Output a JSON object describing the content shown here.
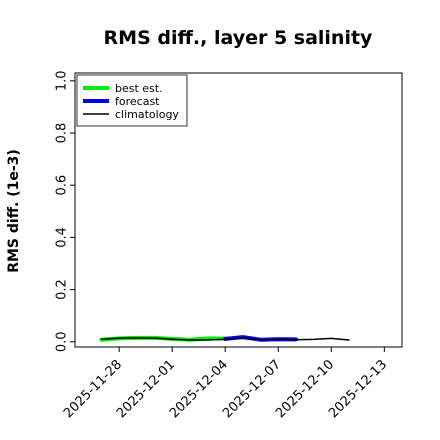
{
  "chart_data": {
    "type": "line",
    "title": "RMS diff., layer 5 salinity",
    "xlabel": "",
    "ylabel": "RMS diff. (1e-3)",
    "ylim": [
      -0.02,
      1.03
    ],
    "yticks": [
      0.0,
      0.2,
      0.4,
      0.6,
      0.8,
      1.0
    ],
    "ytick_labels": [
      "0.0",
      "0.2",
      "0.4",
      "0.6",
      "0.8",
      "1.0"
    ],
    "xlim": [
      "2025-11-25T12:00",
      "2025-12-14"
    ],
    "xticks": [
      "2025-11-28",
      "2025-12-01",
      "2025-12-04",
      "2025-12-07",
      "2025-12-10",
      "2025-12-13"
    ],
    "xtick_labels": [
      "2025-11-28",
      "2025-12-01",
      "2025-12-04",
      "2025-12-07",
      "2025-12-10",
      "2025-12-13"
    ],
    "xtick_colors": [
      "#000000",
      "#000000",
      "#228b22",
      "#000000",
      "#000000",
      "#000000"
    ],
    "grid": false,
    "legend_position": "upper-left",
    "series": [
      {
        "name": "best est.",
        "color": "#00ee00",
        "line_width": 4,
        "x": [
          "2025-11-27",
          "2025-11-28",
          "2025-11-29",
          "2025-11-30",
          "2025-12-01",
          "2025-12-02",
          "2025-12-03",
          "2025-12-04"
        ],
        "y": [
          0.008,
          0.013,
          0.015,
          0.015,
          0.011,
          0.008,
          0.013,
          0.012
        ]
      },
      {
        "name": "forecast",
        "color": "#0000ee",
        "line_width": 4,
        "x": [
          "2025-12-04",
          "2025-12-05",
          "2025-12-06",
          "2025-12-07",
          "2025-12-08"
        ],
        "y": [
          0.011,
          0.018,
          0.008,
          0.01,
          0.009
        ]
      },
      {
        "name": "climatology",
        "color": "#000000",
        "line_width": 1.5,
        "x": [
          "2025-11-27",
          "2025-11-28",
          "2025-11-29",
          "2025-11-30",
          "2025-12-01",
          "2025-12-02",
          "2025-12-03",
          "2025-12-04",
          "2025-12-05",
          "2025-12-06",
          "2025-12-07",
          "2025-12-08",
          "2025-12-09",
          "2025-12-10",
          "2025-12-11"
        ],
        "y": [
          0.01,
          0.014,
          0.015,
          0.014,
          0.01,
          0.007,
          0.007,
          0.01,
          0.015,
          0.008,
          0.01,
          0.008,
          0.009,
          0.013,
          0.007
        ]
      }
    ]
  }
}
